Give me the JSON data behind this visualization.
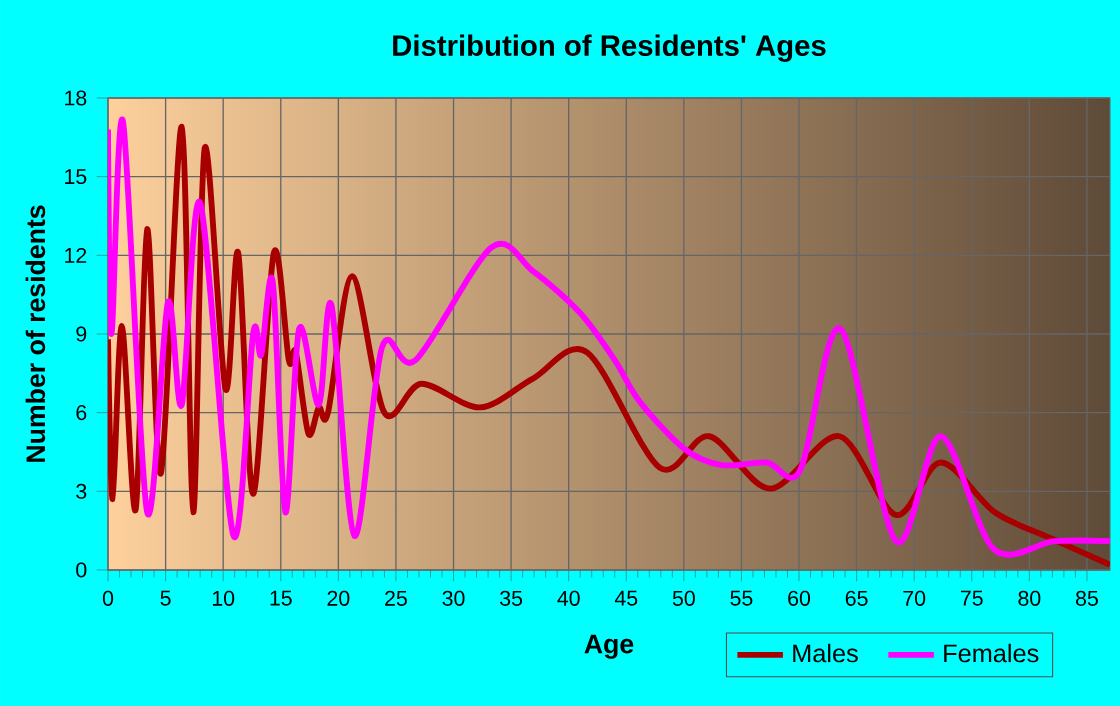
{
  "chart_data": {
    "type": "line",
    "title": "Distribution of Residents' Ages",
    "xlabel": "Age",
    "ylabel": "Number of residents",
    "xlim": [
      0,
      87
    ],
    "xticks": [
      0,
      5,
      10,
      15,
      20,
      25,
      30,
      35,
      40,
      45,
      50,
      55,
      60,
      65,
      70,
      75,
      80,
      85
    ],
    "ylim": [
      0,
      18
    ],
    "yticks": [
      0,
      3,
      6,
      9,
      12,
      15,
      18
    ],
    "grid": true,
    "legend": "bottom right",
    "marker": "none",
    "line_style": "solid",
    "series": [
      {
        "name": "Males",
        "color": "#a80000",
        "x": [
          0,
          0.4,
          1.2,
          2.4,
          3.4,
          4.6,
          6.4,
          7.4,
          8.4,
          10.2,
          11.3,
          12.6,
          14.4,
          15.7,
          16.3,
          17.4,
          18.3,
          19.1,
          21.2,
          24,
          27.2,
          32.3,
          36.9,
          41.6,
          47.9,
          52.2,
          57.5,
          63.5,
          68.4,
          72.3,
          77,
          81.9,
          87
        ],
        "values": [
          8.8,
          2.7,
          9.3,
          2.3,
          13,
          3.7,
          16.9,
          2.2,
          16.1,
          6.9,
          12.1,
          2.9,
          12.1,
          8,
          8.3,
          5.2,
          6.2,
          6,
          11.2,
          6,
          7.1,
          6.2,
          7.3,
          8.3,
          3.9,
          5.1,
          3.1,
          5.1,
          2.1,
          4.1,
          2.2,
          1.2,
          0.2
        ]
      },
      {
        "name": "Females",
        "color": "#ff00ff",
        "x": [
          0,
          0.3,
          1.3,
          3.4,
          5.2,
          6.4,
          8,
          10.9,
          12.6,
          13.3,
          14.3,
          15.4,
          16.6,
          18.3,
          19.4,
          21.4,
          23.8,
          26.7,
          33.3,
          36.9,
          41,
          44,
          46.2,
          50.1,
          53.3,
          57.2,
          60.1,
          63.6,
          68.4,
          72.3,
          76.9,
          82.2,
          87
        ],
        "values": [
          16.8,
          9,
          17.1,
          2.2,
          10.2,
          6.3,
          14,
          1.3,
          9,
          8.2,
          11,
          2.2,
          9.2,
          6.3,
          10.1,
          1.3,
          8.5,
          8,
          12.3,
          11.4,
          9.8,
          8,
          6.4,
          4.6,
          4,
          4.1,
          3.8,
          9.2,
          1.1,
          5.1,
          0.8,
          1.1,
          1.1
        ]
      }
    ]
  }
}
